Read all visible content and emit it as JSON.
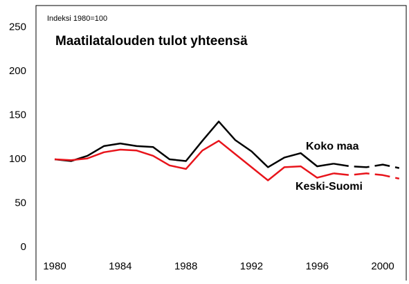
{
  "chart_data": {
    "type": "line",
    "title": "Maatilatalouden tulot yhteensä",
    "subtitle": "Indeksi 1980=100",
    "x": [
      1980,
      1981,
      1982,
      1983,
      1984,
      1985,
      1986,
      1987,
      1988,
      1989,
      1990,
      1991,
      1992,
      1993,
      1994,
      1995,
      1996,
      1997,
      1998,
      1999,
      2000,
      2001
    ],
    "series": [
      {
        "name": "Koko maa",
        "color": "#000000",
        "values": [
          100,
          98,
          104,
          115,
          118,
          115,
          114,
          100,
          98,
          121,
          143,
          122,
          109,
          91,
          102,
          107,
          92,
          95,
          92,
          91,
          94,
          90
        ]
      },
      {
        "name": "Keski-Suomi",
        "color": "#e8141b",
        "values": [
          100,
          99,
          101,
          108,
          111,
          110,
          104,
          93,
          89,
          110,
          121,
          106,
          91,
          76,
          91,
          92,
          79,
          84,
          82,
          84,
          82,
          78
        ]
      }
    ],
    "dashed_from_x": 1997,
    "xlim": [
      1978.86,
      2001.43
    ],
    "xticks": [
      1980,
      1984,
      1988,
      1992,
      1996,
      2000
    ],
    "ylim": [
      -38,
      275
    ],
    "yticks": [
      0,
      50,
      100,
      150,
      200,
      250
    ],
    "grid": false
  }
}
